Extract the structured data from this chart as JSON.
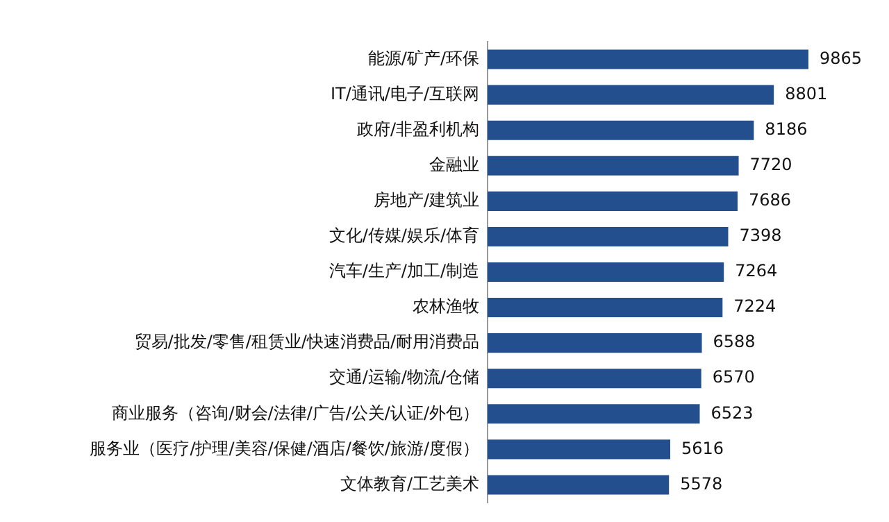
{
  "chart_data": {
    "type": "bar",
    "orientation": "horizontal",
    "tick_labels": "y",
    "data_labels": true,
    "color": "#244f8e",
    "categories": [
      "能源/矿产/环保",
      "IT/通讯/电子/互联网",
      "政府/非盈利机构",
      "金融业",
      "房地产/建筑业",
      "文化/传媒/娱乐/体育",
      "汽车/生产/加工/制造",
      "农林渔牧",
      "贸易/批发/零售/租赁业/快速消费品/耐用消费品",
      "交通/运输/物流/仓储",
      "商业服务（咨询/财会/法律/广告/公关/认证/外包）",
      "服务业（医疗/护理/美容/保健/酒店/餐饮/旅游/度假）",
      "文体教育/工艺美术"
    ],
    "values": [
      9865,
      8801,
      8186,
      7720,
      7686,
      7398,
      7264,
      7224,
      6588,
      6570,
      6523,
      5616,
      5578
    ]
  }
}
